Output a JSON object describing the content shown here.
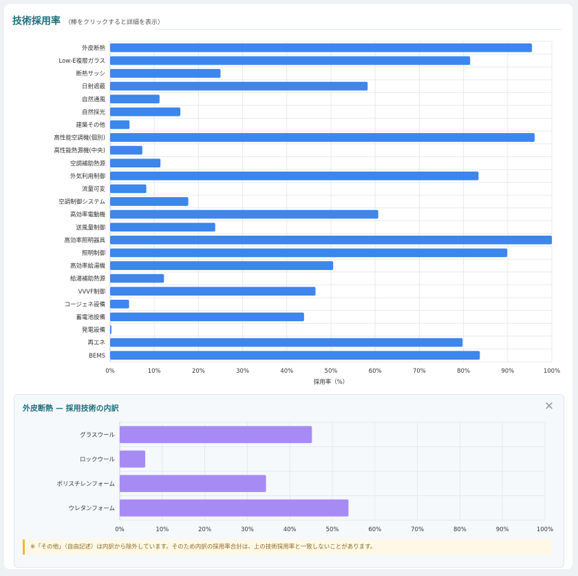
{
  "header": {
    "title": "技術採用率",
    "subtitle": "（棒をクリックすると詳細を表示）"
  },
  "chart_data": [
    {
      "type": "bar",
      "orientation": "horizontal",
      "categories": [
        "外皮断熱",
        "Low-E複層ガラス",
        "断熱サッシ",
        "日射遮蔽",
        "自然通風",
        "自然採光",
        "建築その他",
        "高性能空調機(個別)",
        "高性能熱源機(中央)",
        "空調補助熱源",
        "外気利用制御",
        "流量可変",
        "空調制御システム",
        "高効率電動機",
        "送風量制御",
        "高効率照明器具",
        "照明制御",
        "高効率給湯機",
        "給湯補助熱源",
        "VVVF制御",
        "コージェネ設備",
        "蓄電池設備",
        "発電設備",
        "再エネ",
        "BEMS"
      ],
      "values": [
        95.5,
        81.5,
        25.0,
        58.3,
        11.2,
        15.9,
        4.4,
        96.1,
        7.3,
        11.4,
        83.4,
        8.2,
        17.7,
        60.7,
        23.8,
        100,
        89.9,
        50.5,
        12.2,
        46.5,
        4.3,
        43.9,
        0.3,
        79.8,
        83.7
      ],
      "xlabel": "採用率（%）",
      "xlim": [
        0,
        100
      ],
      "xticks": [
        "0%",
        "10%",
        "20%",
        "30%",
        "40%",
        "50%",
        "60%",
        "70%",
        "80%",
        "90%",
        "100%"
      ],
      "grid": true,
      "bar_color": "#3d86ec"
    },
    {
      "type": "bar",
      "orientation": "horizontal",
      "title": "外皮断熱 — 採用技術の内訳",
      "categories": [
        "グラスウール",
        "ロックウール",
        "ポリスチレンフォーム",
        "ウレタンフォーム"
      ],
      "values": [
        45.2,
        6.0,
        34.4,
        53.8
      ],
      "xlim": [
        0,
        100
      ],
      "xticks": [
        "0%",
        "10%",
        "20%",
        "30%",
        "40%",
        "50%",
        "60%",
        "70%",
        "80%",
        "90%",
        "100%"
      ],
      "grid": true,
      "bar_color": "#a78bf5"
    }
  ],
  "detail": {
    "close_icon": "close-icon",
    "note": "※「その他」（自由記述）は内訳から除外しています。そのため内訳の採用率合計は、上の技術採用率と一致しないことがあります。"
  }
}
